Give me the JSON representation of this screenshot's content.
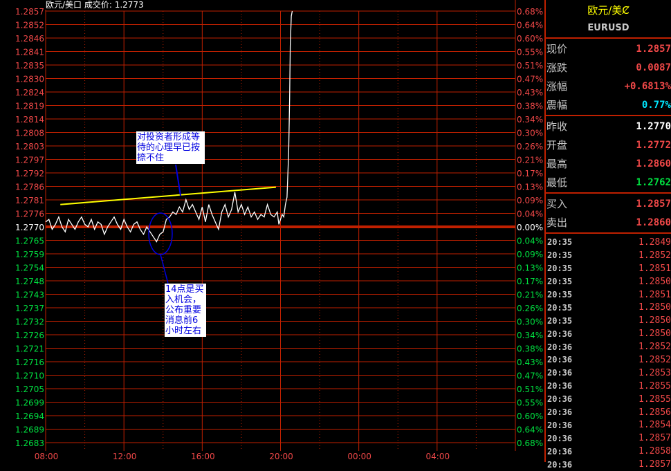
{
  "header": {
    "title": "欧元/美口 成交价: 1.2773"
  },
  "colors": {
    "grid": "#c02000",
    "up": "#f04848",
    "down": "#00e040",
    "neutral": "#ffffff",
    "price_line": "#ffffff",
    "trend_line": "#ffff00",
    "annotation": "#0000e0",
    "amplitude": "#00e8ff"
  },
  "chart_data": {
    "type": "line",
    "title": "",
    "ylim": [
      1.2683,
      1.2857
    ],
    "xlim": [
      "08:00",
      "08:00 (+1d)"
    ],
    "prev_close": 1.277,
    "y_ticks": [
      "1.2857",
      "1.2852",
      "1.2846",
      "1.2841",
      "1.2835",
      "1.2830",
      "1.2824",
      "1.2819",
      "1.2814",
      "1.2808",
      "1.2803",
      "1.2797",
      "1.2792",
      "1.2786",
      "1.2781",
      "1.2776",
      "1.2770",
      "1.2765",
      "1.2759",
      "1.2754",
      "1.2748",
      "1.2743",
      "1.2737",
      "1.2732",
      "1.2726",
      "1.2721",
      "1.2716",
      "1.2710",
      "1.2705",
      "1.2699",
      "1.2694",
      "1.2689",
      "1.2683"
    ],
    "pct_ticks": [
      "0.68%",
      "0.64%",
      "0.60%",
      "0.55%",
      "0.51%",
      "0.47%",
      "0.43%",
      "0.38%",
      "0.34%",
      "0.30%",
      "0.26%",
      "0.21%",
      "0.17%",
      "0.13%",
      "0.09%",
      "0.04%",
      "0.00%",
      "0.04%",
      "0.09%",
      "0.13%",
      "0.17%",
      "0.21%",
      "0.26%",
      "0.30%",
      "0.34%",
      "0.38%",
      "0.43%",
      "0.47%",
      "0.51%",
      "0.55%",
      "0.60%",
      "0.64%",
      "0.68%"
    ],
    "x_ticks": [
      "08:00",
      "12:00",
      "16:00",
      "20:00",
      "00:00",
      "04:00"
    ],
    "grid": true,
    "series": [
      {
        "times": [
          "08:00",
          "08:10",
          "08:20",
          "08:30",
          "08:40",
          "08:50",
          "09:00",
          "09:10",
          "09:20",
          "09:30",
          "09:40",
          "09:50",
          "10:00",
          "10:10",
          "10:20",
          "10:30",
          "10:40",
          "10:50",
          "11:00",
          "11:10",
          "11:20",
          "11:30",
          "11:40",
          "11:50",
          "12:00",
          "12:10",
          "12:20",
          "12:30",
          "12:40",
          "12:50",
          "13:00",
          "13:10",
          "13:20",
          "13:30",
          "13:40",
          "13:50",
          "14:00",
          "14:10",
          "14:20",
          "14:30",
          "14:40",
          "14:50",
          "15:00",
          "15:10",
          "15:20",
          "15:30",
          "15:40",
          "15:50",
          "16:00",
          "16:10",
          "16:20",
          "16:30",
          "16:50",
          "17:00",
          "17:10",
          "17:20",
          "17:30",
          "17:40",
          "17:50",
          "18:00",
          "18:10",
          "18:20",
          "18:30",
          "18:40",
          "18:50",
          "19:00",
          "19:10",
          "19:20",
          "19:30",
          "19:40",
          "19:50",
          "19:55",
          "20:05",
          "20:10",
          "20:15",
          "20:20",
          "20:25",
          "20:28",
          "20:30",
          "20:33",
          "20:36"
        ],
        "values": [
          1.2772,
          1.2773,
          1.2769,
          1.2771,
          1.2774,
          1.277,
          1.2768,
          1.2773,
          1.2771,
          1.2769,
          1.2772,
          1.2774,
          1.2771,
          1.277,
          1.2773,
          1.2769,
          1.2772,
          1.2771,
          1.2767,
          1.277,
          1.2772,
          1.2774,
          1.2771,
          1.2769,
          1.2773,
          1.277,
          1.2768,
          1.2771,
          1.2772,
          1.2769,
          1.2767,
          1.277,
          1.2768,
          1.2766,
          1.2764,
          1.2767,
          1.2768,
          1.2773,
          1.2774,
          1.2776,
          1.2775,
          1.2778,
          1.2776,
          1.2781,
          1.2777,
          1.2779,
          1.2776,
          1.2773,
          1.2778,
          1.2772,
          1.2779,
          1.2775,
          1.2769,
          1.2776,
          1.2779,
          1.2774,
          1.2777,
          1.2784,
          1.2776,
          1.2779,
          1.2775,
          1.2778,
          1.2774,
          1.2776,
          1.2773,
          1.2775,
          1.2774,
          1.2779,
          1.2775,
          1.2774,
          1.2776,
          1.2771,
          1.2775,
          1.2774,
          1.2779,
          1.2782,
          1.28,
          1.2822,
          1.2843,
          1.2855,
          1.2857
        ]
      }
    ],
    "trend_line": {
      "from": [
        "08:45",
        1.2779
      ],
      "to": [
        "19:46",
        1.2786
      ]
    },
    "annotations": [
      {
        "text": "对投资者形成等待的心理早已按捺不住"
      },
      {
        "text": "14点是买入机会，公布重要消息前6小时左右"
      }
    ]
  },
  "panel": {
    "title": "欧元/美Ȼ",
    "symbol": "EURUSD",
    "quote": [
      {
        "label": "现价",
        "value": "1.2857",
        "color": "#f04848"
      },
      {
        "label": "涨跌",
        "value": "0.0087",
        "color": "#f04848"
      },
      {
        "label": "涨幅",
        "value": "+0.6813%",
        "color": "#f04848"
      },
      {
        "label": "震幅",
        "value": "0.77%",
        "color": "#00e8ff"
      }
    ],
    "ohlc": [
      {
        "label": "昨收",
        "value": "1.2770",
        "color": "#ffffff"
      },
      {
        "label": "开盘",
        "value": "1.2772",
        "color": "#f04848"
      },
      {
        "label": "最高",
        "value": "1.2860",
        "color": "#f04848"
      },
      {
        "label": "最低",
        "value": "1.2762",
        "color": "#00e040"
      }
    ],
    "bidask": [
      {
        "label": "买入",
        "value": "1.2857",
        "color": "#f04848"
      },
      {
        "label": "卖出",
        "value": "1.2860",
        "color": "#f04848"
      }
    ],
    "ticks": [
      {
        "time": "20:35",
        "price": "1.2849"
      },
      {
        "time": "20:35",
        "price": "1.2852"
      },
      {
        "time": "20:35",
        "price": "1.2851"
      },
      {
        "time": "20:35",
        "price": "1.2850"
      },
      {
        "time": "20:35",
        "price": "1.2851"
      },
      {
        "time": "20:35",
        "price": "1.2850"
      },
      {
        "time": "20:35",
        "price": "1.2850"
      },
      {
        "time": "20:36",
        "price": "1.2850"
      },
      {
        "time": "20:36",
        "price": "1.2852"
      },
      {
        "time": "20:36",
        "price": "1.2852"
      },
      {
        "time": "20:36",
        "price": "1.2853"
      },
      {
        "time": "20:36",
        "price": "1.2855"
      },
      {
        "time": "20:36",
        "price": "1.2855"
      },
      {
        "time": "20:36",
        "price": "1.2856"
      },
      {
        "time": "20:36",
        "price": "1.2854"
      },
      {
        "time": "20:36",
        "price": "1.2857"
      },
      {
        "time": "20:36",
        "price": "1.2858"
      },
      {
        "time": "20:36",
        "price": "1.2857"
      }
    ]
  }
}
